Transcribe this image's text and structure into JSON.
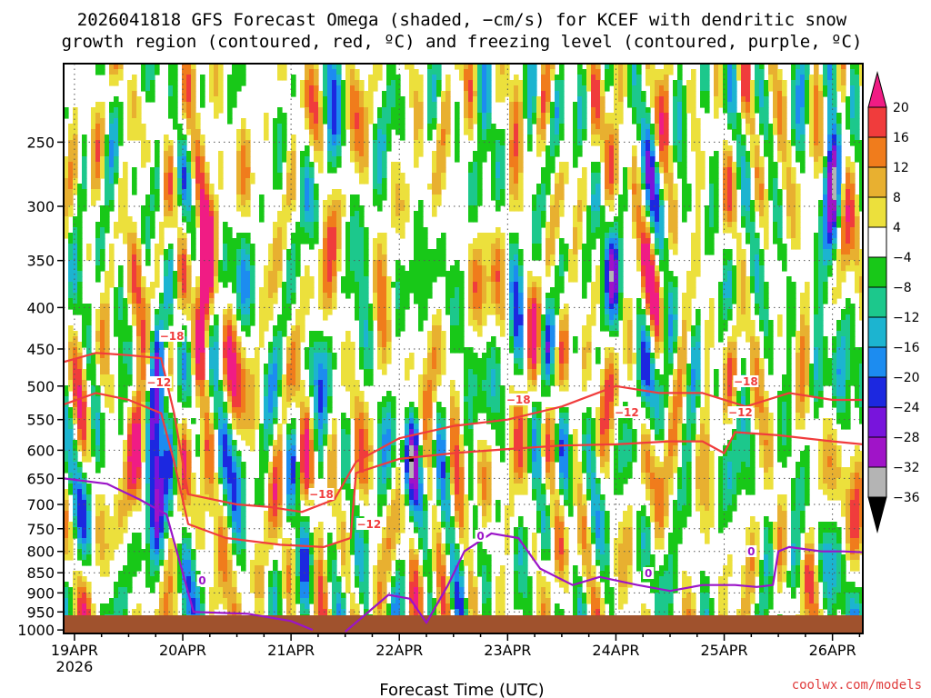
{
  "title": {
    "line1": "2026041818 GFS Forecast Omega (shaded, −cm/s) for KCEF with dendritic snow",
    "line2": "growth region (contoured, red, ºC) and freezing level (contoured, purple, ºC)"
  },
  "credit": "coolwx.com/models",
  "chart_data": {
    "type": "heatmap",
    "title": "2026041818 GFS Forecast Omega (shaded, −cm/s) for KCEF with dendritic snow growth region (contoured, red, ºC) and freezing level (contoured, purple, ºC)",
    "xlabel": "Forecast Time (UTC)",
    "ylabel": "",
    "x_ticks": [
      {
        "label": "19APR",
        "sublabel": "2026",
        "day": 0
      },
      {
        "label": "20APR",
        "day": 1
      },
      {
        "label": "21APR",
        "day": 2
      },
      {
        "label": "22APR",
        "day": 3
      },
      {
        "label": "23APR",
        "day": 4
      },
      {
        "label": "24APR",
        "day": 5
      },
      {
        "label": "25APR",
        "day": 6
      },
      {
        "label": "26APR",
        "day": 7
      }
    ],
    "xlim_days": [
      -0.1,
      7.28
    ],
    "y_ticks": [
      250,
      300,
      350,
      400,
      450,
      500,
      550,
      600,
      650,
      700,
      750,
      800,
      850,
      900,
      950,
      1000
    ],
    "ylim_hpa": [
      1010,
      200
    ],
    "colorbar": {
      "labels": [
        "20",
        "16",
        "12",
        "8",
        "4",
        "−4",
        "−8",
        "−12",
        "−16",
        "−20",
        "−24",
        "−28",
        "−32",
        "−36"
      ],
      "bins": [
        {
          "range": "> 20",
          "color": "#f01c84"
        },
        {
          "range": "16 to 20",
          "color": "#f03c3c"
        },
        {
          "range": "12 to 16",
          "color": "#f07c1c"
        },
        {
          "range": "8 to 12",
          "color": "#e8b030"
        },
        {
          "range": "4 to 8",
          "color": "#ece03c"
        },
        {
          "range": "-4 to 4",
          "color": "#ffffff"
        },
        {
          "range": "-8 to -4",
          "color": "#18c818"
        },
        {
          "range": "-12 to -8",
          "color": "#1cc88c"
        },
        {
          "range": "-16 to -12",
          "color": "#1cb4d0"
        },
        {
          "range": "-20 to -16",
          "color": "#1c8cf0"
        },
        {
          "range": "-24 to -20",
          "color": "#1c28e0"
        },
        {
          "range": "-28 to -24",
          "color": "#7814dc"
        },
        {
          "range": "-32 to -28",
          "color": "#a014c8"
        },
        {
          "range": "-36 to -32",
          "color": "#b4b4b4"
        },
        {
          "range": "< -36",
          "color": "#000000"
        }
      ]
    },
    "omega_features": [
      {
        "name": "upper lift max",
        "day": 1.2,
        "p_center": 370,
        "peak": 22,
        "p_range": [
          220,
          520
        ]
      },
      {
        "name": "low-level lift core",
        "day": 0.6,
        "p_center": 560,
        "peak": 20,
        "p_range": [
          460,
          840
        ]
      },
      {
        "name": "strong sinking column",
        "day": 0.75,
        "p_center": 620,
        "peak": -38,
        "p_range": [
          420,
          780
        ]
      },
      {
        "name": "sinking band",
        "day": 3.1,
        "p_center": 610,
        "peak": -22,
        "p_range": [
          550,
          700
        ]
      },
      {
        "name": "sinking band",
        "day": 5.0,
        "p_center": 330,
        "peak": -20,
        "p_range": [
          200,
          400
        ]
      },
      {
        "name": "sinking band",
        "day": 7.0,
        "p_center": 300,
        "peak": -22,
        "p_range": [
          200,
          470
        ]
      },
      {
        "name": "lift band",
        "day": 5.0,
        "p_center": 260,
        "peak": 14,
        "p_range": [
          200,
          500
        ]
      },
      {
        "name": "lift band",
        "day": 7.1,
        "p_center": 280,
        "peak": 12,
        "p_range": [
          200,
          350
        ]
      }
    ],
    "contour_labels": {
      "minus18": "−18",
      "minus12": "−12",
      "zero": "0"
    },
    "contours": [
      {
        "label": "-18 ºC",
        "color": "#f03c3c",
        "points": [
          [
            -0.1,
            467
          ],
          [
            0.2,
            455
          ],
          [
            0.5,
            458
          ],
          [
            0.8,
            462
          ],
          [
            0.92,
            540
          ],
          [
            1.05,
            680
          ],
          [
            1.5,
            700
          ],
          [
            1.8,
            705
          ],
          [
            2.1,
            715
          ],
          [
            2.4,
            690
          ],
          [
            2.6,
            620
          ],
          [
            3.0,
            580
          ],
          [
            3.5,
            560
          ],
          [
            4.0,
            550
          ],
          [
            4.5,
            530
          ],
          [
            5.0,
            500
          ],
          [
            5.4,
            510
          ],
          [
            5.8,
            510
          ],
          [
            6.2,
            530
          ],
          [
            6.6,
            510
          ],
          [
            7.0,
            520
          ],
          [
            7.28,
            520
          ]
        ]
      },
      {
        "label": "-12 ºC",
        "color": "#f03c3c",
        "points": [
          [
            -0.1,
            527
          ],
          [
            0.2,
            510
          ],
          [
            0.5,
            520
          ],
          [
            0.8,
            540
          ],
          [
            0.92,
            620
          ],
          [
            1.05,
            740
          ],
          [
            1.4,
            770
          ],
          [
            1.9,
            785
          ],
          [
            2.3,
            790
          ],
          [
            2.55,
            770
          ],
          [
            2.6,
            640
          ],
          [
            3.0,
            615
          ],
          [
            3.5,
            605
          ],
          [
            4.0,
            598
          ],
          [
            4.5,
            592
          ],
          [
            5.0,
            590
          ],
          [
            5.5,
            585
          ],
          [
            5.8,
            585
          ],
          [
            6.0,
            605
          ],
          [
            6.1,
            570
          ],
          [
            6.5,
            575
          ],
          [
            7.0,
            585
          ],
          [
            7.28,
            590
          ]
        ]
      },
      {
        "label": "0 ºC",
        "color": "#9b14c8",
        "points": [
          [
            -0.1,
            650
          ],
          [
            0.3,
            660
          ],
          [
            0.6,
            690
          ],
          [
            0.85,
            720
          ],
          [
            1.1,
            950
          ],
          [
            1.6,
            955
          ],
          [
            2.0,
            975
          ],
          [
            2.2,
            1000
          ]
        ]
      },
      {
        "label": "0 ºC",
        "color": "#9b14c8",
        "points": [
          [
            2.5,
            1005
          ],
          [
            2.9,
            905
          ],
          [
            3.1,
            915
          ],
          [
            3.25,
            980
          ],
          [
            3.45,
            880
          ],
          [
            3.6,
            800
          ],
          [
            3.85,
            760
          ],
          [
            4.1,
            770
          ],
          [
            4.3,
            840
          ],
          [
            4.6,
            880
          ],
          [
            4.85,
            860
          ],
          [
            5.2,
            880
          ],
          [
            5.5,
            895
          ],
          [
            5.8,
            880
          ],
          [
            6.1,
            880
          ],
          [
            6.3,
            885
          ],
          [
            6.45,
            880
          ],
          [
            6.5,
            800
          ],
          [
            6.6,
            790
          ],
          [
            6.9,
            800
          ],
          [
            7.1,
            800
          ],
          [
            7.28,
            802
          ]
        ]
      }
    ]
  }
}
